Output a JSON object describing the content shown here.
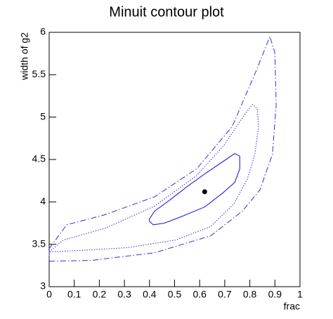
{
  "chart_data": {
    "type": "contour",
    "title": "Minuit contour plot",
    "xlabel": "frac",
    "ylabel": "width of g2",
    "xlim": [
      0,
      1
    ],
    "xticks": [
      0,
      0.1,
      0.2,
      0.3,
      0.4,
      0.5,
      0.6,
      0.7,
      0.8,
      0.9,
      1
    ],
    "ylim": [
      3,
      6
    ],
    "yticks": [
      3,
      3.5,
      4,
      4.5,
      5,
      5.5,
      6
    ],
    "series": [
      {
        "color": "#2020d0",
        "line_style": "solid",
        "x": [
          0.4,
          0.415,
          0.46,
          0.53,
          0.62,
          0.69,
          0.74,
          0.76,
          0.76,
          0.74,
          0.69,
          0.62,
          0.55,
          0.48,
          0.42,
          0.4,
          0.4
        ],
        "y": [
          3.77,
          3.73,
          3.75,
          3.83,
          3.94,
          4.1,
          4.23,
          4.39,
          4.54,
          4.57,
          4.47,
          4.33,
          4.18,
          4.02,
          3.89,
          3.8,
          3.77
        ]
      },
      {
        "color": "#4040e0",
        "line_style": "dotted",
        "x": [
          0,
          0.056,
          0.224,
          0.42,
          0.588,
          0.7,
          0.77,
          0.81,
          0.83,
          0.835,
          0.82,
          0.79,
          0.737,
          0.644,
          0.504,
          0.31,
          0.14,
          0
        ],
        "y": [
          3.41,
          3.55,
          3.69,
          3.95,
          4.31,
          4.68,
          4.99,
          5.15,
          5.1,
          4.89,
          4.56,
          4.27,
          3.98,
          3.71,
          3.55,
          3.46,
          3.43,
          3.41
        ]
      },
      {
        "color": "#4040e0",
        "line_style": "dashdot",
        "x": [
          0,
          0.07,
          0.224,
          0.42,
          0.588,
          0.73,
          0.826,
          0.88,
          0.9,
          0.905,
          0.89,
          0.84,
          0.77,
          0.644,
          0.42,
          0.168,
          0,
          0
        ],
        "y": [
          3.45,
          3.73,
          3.85,
          4.06,
          4.39,
          4.89,
          5.55,
          5.95,
          5.76,
          5.14,
          4.56,
          4.14,
          3.89,
          3.6,
          3.4,
          3.31,
          3.3,
          3.45
        ]
      }
    ],
    "point": {
      "x": 0.62,
      "y": 4.12,
      "color": "#000000"
    }
  }
}
